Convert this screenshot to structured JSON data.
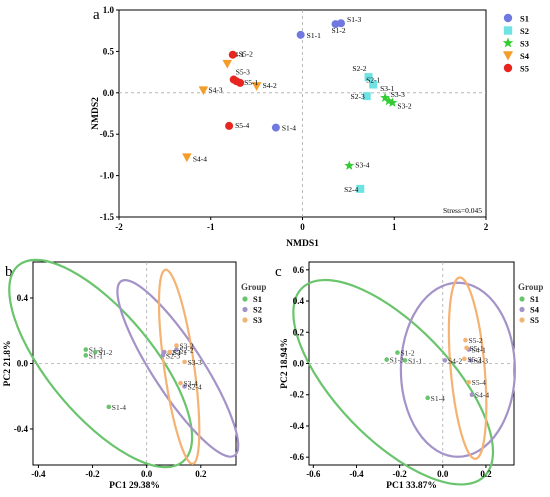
{
  "chart_data": [
    {
      "type": "scatter",
      "panel": "a",
      "xlabel": "NMDS1",
      "ylabel": "NMDS2",
      "xlim": [
        -2,
        2
      ],
      "ylim": [
        -1.5,
        1.0
      ],
      "xticks": [
        "-2",
        "-1",
        "0",
        "1",
        "2"
      ],
      "yticks": [
        "-1.5",
        "-1.0",
        "-0.5",
        "0.0",
        "0.5",
        "1.0"
      ],
      "annotation": "Stress=0.045",
      "legend_position": "top-right",
      "series": [
        {
          "name": "S1",
          "color": "#6f79e0",
          "marker": "circle",
          "points": [
            {
              "label": "S1-1",
              "x": -0.02,
              "y": 0.7
            },
            {
              "label": "S1-3",
              "x": 0.42,
              "y": 0.84
            },
            {
              "label": "S1-2",
              "x": 0.36,
              "y": 0.83
            },
            {
              "label": "S1-4",
              "x": -0.29,
              "y": -0.42
            }
          ]
        },
        {
          "name": "S2",
          "color": "#6fe3e3",
          "marker": "square",
          "points": [
            {
              "label": "S2-2",
              "x": 0.72,
              "y": 0.19
            },
            {
              "label": "S2-1",
              "x": 0.77,
              "y": 0.1
            },
            {
              "label": "S2-3",
              "x": 0.7,
              "y": -0.04
            },
            {
              "label": "S2-4",
              "x": 0.63,
              "y": -1.16
            }
          ]
        },
        {
          "name": "S3",
          "color": "#33cc33",
          "marker": "star",
          "points": [
            {
              "label": "S3-1",
              "x": 0.9,
              "y": -0.06
            },
            {
              "label": "S3-3",
              "x": 0.94,
              "y": -0.1
            },
            {
              "label": "S3-2",
              "x": 0.98,
              "y": -0.12
            },
            {
              "label": "S3-4",
              "x": 0.51,
              "y": -0.88
            }
          ]
        },
        {
          "name": "S4",
          "color": "#f59d2a",
          "marker": "triangle-down",
          "points": [
            {
              "label": "S4-1",
              "x": -0.82,
              "y": 0.35
            },
            {
              "label": "S4-2",
              "x": -0.5,
              "y": 0.08
            },
            {
              "label": "S4-3",
              "x": -1.08,
              "y": 0.03
            },
            {
              "label": "S4-4",
              "x": -1.26,
              "y": -0.78
            }
          ]
        },
        {
          "name": "S5",
          "color": "#e8251f",
          "marker": "circle",
          "points": [
            {
              "label": "S5-2",
              "x": -0.76,
              "y": 0.46
            },
            {
              "label": "S5-3",
              "x": -0.75,
              "y": 0.16
            },
            {
              "label": "S5-1",
              "x": -0.68,
              "y": 0.12
            },
            {
              "label": "",
              "x": -0.72,
              "y": 0.14
            },
            {
              "label": "S5-4",
              "x": -0.8,
              "y": -0.4
            }
          ]
        }
      ]
    },
    {
      "type": "scatter",
      "panel": "b",
      "xlabel": "PC1 29.38%",
      "ylabel": "PC2 21.8%",
      "xlim": [
        -0.42,
        0.33
      ],
      "ylim": [
        -0.62,
        0.62
      ],
      "xticks": [
        "-0.4",
        "-0.2",
        "0.0",
        "0.2"
      ],
      "yticks": [
        "-0.4",
        "0.0",
        "0.4"
      ],
      "legend_title": "Group",
      "legend_position": "right",
      "series": [
        {
          "name": "S1",
          "color": "#69c46c",
          "points": [
            {
              "label": "S1-3",
              "x": -0.225,
              "y": 0.085
            },
            {
              "label": "S1-2",
              "x": -0.19,
              "y": 0.07
            },
            {
              "label": "S1-1",
              "x": -0.225,
              "y": 0.05
            },
            {
              "label": "S1-4",
              "x": -0.14,
              "y": -0.265
            }
          ]
        },
        {
          "name": "S2",
          "color": "#a493c8",
          "points": [
            {
              "label": "S2-1",
              "x": 0.065,
              "y": 0.07
            },
            {
              "label": "S2-3",
              "x": 0.06,
              "y": 0.05
            },
            {
              "label": "S2-4",
              "x": 0.14,
              "y": -0.14
            },
            {
              "label": "S2-2",
              "x": 0.11,
              "y": 0.085
            }
          ]
        },
        {
          "name": "S3",
          "color": "#f4b273",
          "points": [
            {
              "label": "S3-2",
              "x": 0.11,
              "y": 0.11
            },
            {
              "label": "S3-1",
              "x": 0.085,
              "y": 0.07
            },
            {
              "label": "S3-3",
              "x": 0.14,
              "y": 0.01
            },
            {
              "label": "S3-4",
              "x": 0.125,
              "y": -0.12
            }
          ]
        }
      ]
    },
    {
      "type": "scatter",
      "panel": "c",
      "xlabel": "PC1 33.87%",
      "ylabel": "PC2 18.94%",
      "xlim": [
        -0.62,
        0.33
      ],
      "ylim": [
        -0.65,
        0.65
      ],
      "xticks": [
        "-0.6",
        "-0.4",
        "-0.2",
        "0.0",
        "0.2"
      ],
      "yticks": [
        "-0.6",
        "-0.4",
        "-0.2",
        "0.0",
        "0.2",
        "0.4",
        "0.6"
      ],
      "legend_title": "Group",
      "legend_position": "right",
      "series": [
        {
          "name": "S1",
          "color": "#69c46c",
          "points": [
            {
              "label": "S1-3",
              "x": -0.26,
              "y": 0.025
            },
            {
              "label": "S1-2",
              "x": -0.21,
              "y": 0.07
            },
            {
              "label": "S1-1",
              "x": -0.175,
              "y": 0.02
            },
            {
              "label": "S1-4",
              "x": -0.07,
              "y": -0.22
            }
          ]
        },
        {
          "name": "S4",
          "color": "#a493c8",
          "points": [
            {
              "label": "S4-2",
              "x": 0.01,
              "y": 0.02
            },
            {
              "label": "S4-1",
              "x": 0.12,
              "y": 0.09
            },
            {
              "label": "S4-3",
              "x": 0.13,
              "y": 0.02
            },
            {
              "label": "S4-4",
              "x": 0.135,
              "y": -0.2
            }
          ]
        },
        {
          "name": "S5",
          "color": "#f4b273",
          "points": [
            {
              "label": "S5-2",
              "x": 0.105,
              "y": 0.15
            },
            {
              "label": "S5-1",
              "x": 0.11,
              "y": 0.1
            },
            {
              "label": "S5-3",
              "x": 0.1,
              "y": 0.03
            },
            {
              "label": "S5-4",
              "x": 0.12,
              "y": -0.12
            }
          ]
        }
      ]
    }
  ]
}
